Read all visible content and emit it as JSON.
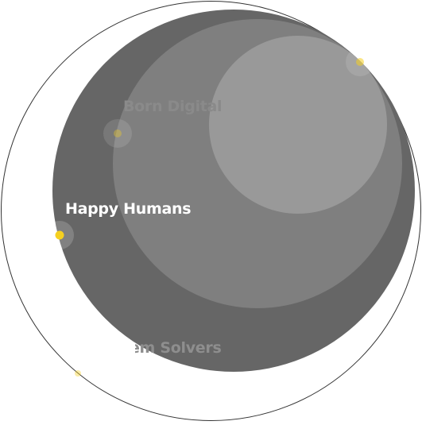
{
  "labels": {
    "born_digital": "Born Digital",
    "happy_humans": "Happy Humans",
    "problem_solvers": "Problem Solvers"
  },
  "colors": {
    "outer_ring": "#333333",
    "layer_dark": "#666666",
    "layer_mid": "#7f7f7f",
    "layer_light": "#999999",
    "accent_dot": "#f5d020",
    "active_label": "#ffffff",
    "inactive_label": "#8a8a8a"
  },
  "state": {
    "active_item": "happy_humans"
  }
}
